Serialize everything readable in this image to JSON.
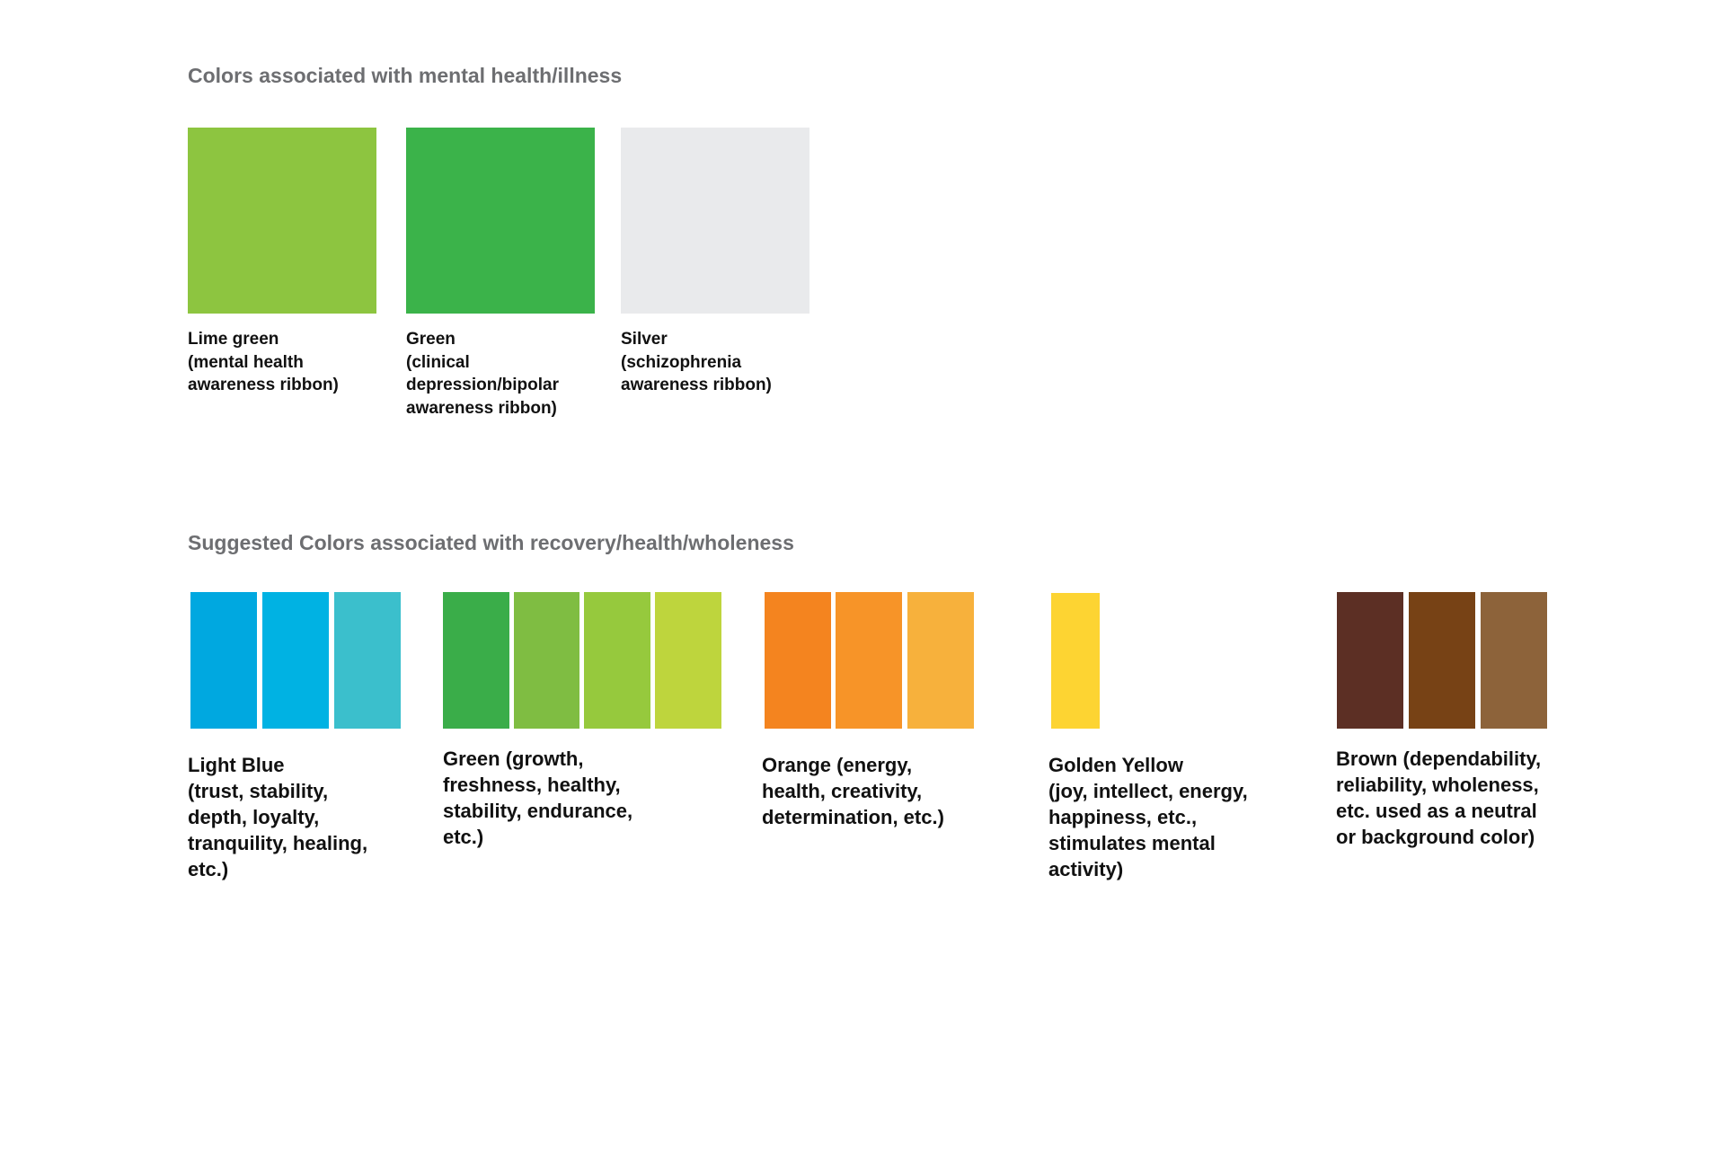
{
  "section1": {
    "heading": "Colors associated with mental health/illness",
    "items": [
      {
        "color": "#8dc540",
        "label_lines": [
          "Lime green",
          "(mental health",
          "awareness ribbon)"
        ]
      },
      {
        "color": "#3bb34a",
        "label_lines": [
          "Green",
          "(clinical",
          "depression/bipolar",
          "awareness ribbon)"
        ]
      },
      {
        "color": "#e9eaec",
        "label_lines": [
          "Silver",
          "(schizophrenia",
          "awareness ribbon)"
        ]
      }
    ]
  },
  "section2": {
    "heading": "Suggested Colors associated with recovery/health/wholeness",
    "groups": [
      {
        "colors": [
          "#00a8e0",
          "#00b2e3",
          "#3bbfcc"
        ],
        "label_lines": [
          "Light Blue",
          "(trust, stability,",
          "depth, loyalty,",
          "tranquility, healing,",
          "etc.)"
        ]
      },
      {
        "colors": [
          "#3aad49",
          "#7fbd42",
          "#96c93d",
          "#bed53d"
        ],
        "label_lines": [
          "Green (growth,",
          "freshness, healthy,",
          "stability, endurance,",
          "etc.)"
        ]
      },
      {
        "colors": [
          "#f4841f",
          "#f79428",
          "#f7b13c"
        ],
        "label_lines": [
          "Orange (energy,",
          "health, creativity,",
          "determination, etc.)"
        ]
      },
      {
        "colors": [
          "#fdd432"
        ],
        "label_lines": [
          "Golden Yellow",
          "(joy, intellect, energy,",
          "happiness, etc.,",
          "stimulates mental",
          "activity)"
        ]
      },
      {
        "colors": [
          "#5c2f24",
          "#774215",
          "#8d633a"
        ],
        "label_lines": [
          "Brown (dependability,",
          "reliability, wholeness,",
          "etc. used as a neutral",
          "or background color)"
        ]
      }
    ]
  }
}
